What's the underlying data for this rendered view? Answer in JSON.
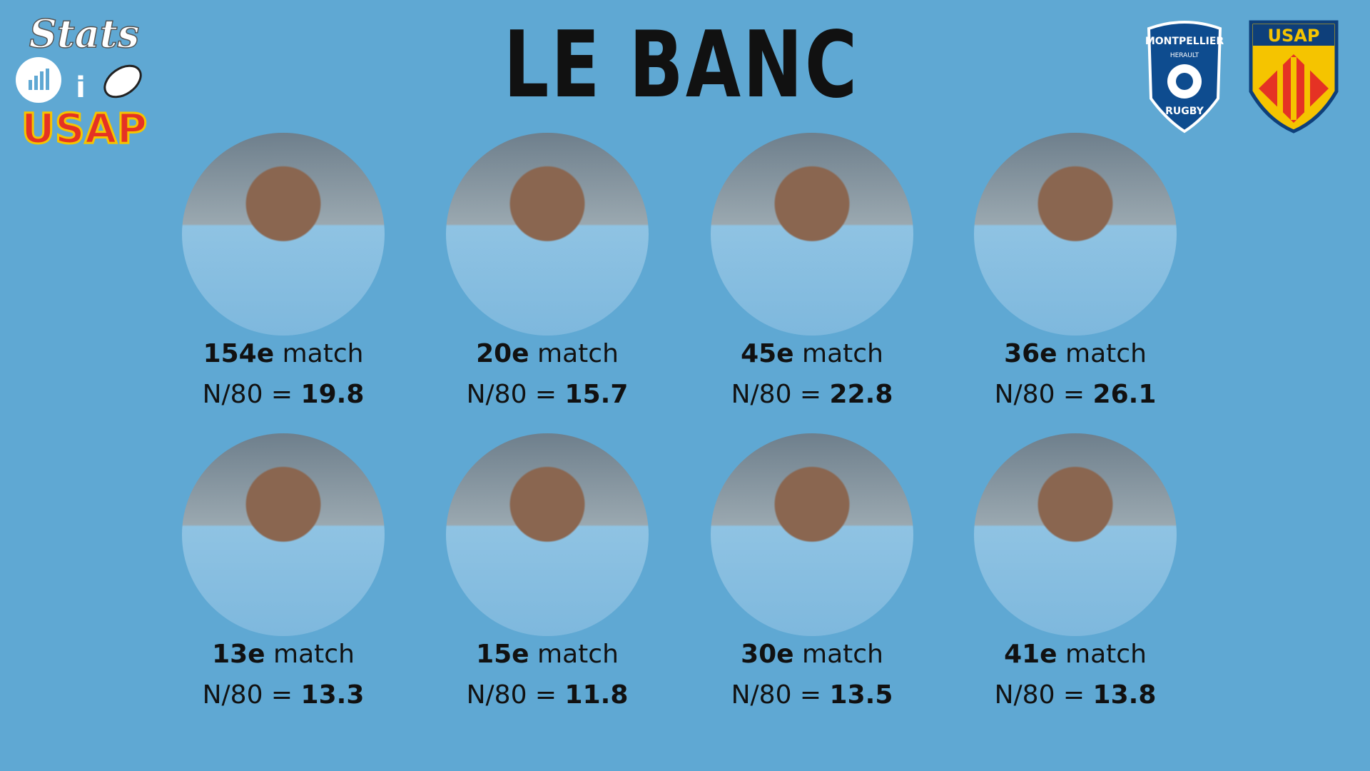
{
  "header": {
    "title": "LE BANC",
    "brand": {
      "top": "Stats",
      "middle": "i",
      "bottom": "USAP"
    },
    "logos": [
      {
        "lines": [
          "MONTPELLIER",
          "HERAULT",
          "RUGBY"
        ]
      },
      {
        "lines": [
          "USAP"
        ]
      }
    ]
  },
  "players": [
    {
      "match_number": "154e",
      "match_label": "match",
      "stat_label": "N/80 =",
      "stat_value": 19.8
    },
    {
      "match_number": "20e",
      "match_label": "match",
      "stat_label": "N/80 =",
      "stat_value": 15.7
    },
    {
      "match_number": "45e",
      "match_label": "match",
      "stat_label": "N/80 =",
      "stat_value": 22.8
    },
    {
      "match_number": "36e",
      "match_label": "match",
      "stat_label": "N/80 =",
      "stat_value": 26.1
    },
    {
      "match_number": "13e",
      "match_label": "match",
      "stat_label": "N/80 =",
      "stat_value": 13.3
    },
    {
      "match_number": "15e",
      "match_label": "match",
      "stat_label": "N/80 =",
      "stat_value": 11.8
    },
    {
      "match_number": "30e",
      "match_label": "match",
      "stat_label": "N/80 =",
      "stat_value": 13.5
    },
    {
      "match_number": "41e",
      "match_label": "match",
      "stat_label": "N/80 =",
      "stat_value": 13.8
    }
  ]
}
